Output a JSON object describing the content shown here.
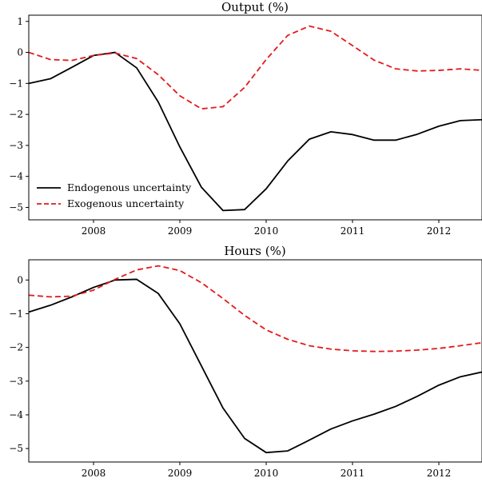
{
  "chart_data": [
    {
      "type": "line",
      "title": "Output (%)",
      "xlabel": "",
      "ylabel": "",
      "xlim": [
        2007.25,
        2012.5
      ],
      "ylim": [
        -5.4,
        1.2
      ],
      "xticks": [
        2008,
        2009,
        2010,
        2011,
        2012
      ],
      "xtick_labels": [
        "2008",
        "2009",
        "2010",
        "2011",
        "2012"
      ],
      "yticks": [
        1,
        0,
        -1,
        -2,
        -3,
        -4,
        -5
      ],
      "ytick_labels": [
        "1",
        "0",
        "−1",
        "−2",
        "−3",
        "−4",
        "−5"
      ],
      "grid": false,
      "legend": "lower-left",
      "series": [
        {
          "name": "Endogenous uncertainty",
          "color": "#000000",
          "dash": "solid",
          "x": [
            2007.25,
            2007.5,
            2007.75,
            2008.0,
            2008.25,
            2008.5,
            2008.75,
            2009.0,
            2009.25,
            2009.5,
            2009.75,
            2010.0,
            2010.25,
            2010.5,
            2010.75,
            2011.0,
            2011.25,
            2011.5,
            2011.75,
            2012.0,
            2012.25,
            2012.5
          ],
          "values": [
            -1.0,
            -0.85,
            -0.48,
            -0.1,
            0.0,
            -0.5,
            -1.6,
            -3.05,
            -4.35,
            -5.1,
            -5.07,
            -4.4,
            -3.5,
            -2.8,
            -2.56,
            -2.65,
            -2.83,
            -2.83,
            -2.64,
            -2.38,
            -2.2,
            -2.17
          ]
        },
        {
          "name": "Exogenous uncertainty",
          "color": "#e41a1c",
          "dash": "dashed",
          "x": [
            2007.25,
            2007.5,
            2007.75,
            2008.0,
            2008.25,
            2008.5,
            2008.75,
            2009.0,
            2009.25,
            2009.5,
            2009.75,
            2010.0,
            2010.25,
            2010.5,
            2010.75,
            2011.0,
            2011.25,
            2011.5,
            2011.75,
            2012.0,
            2012.25,
            2012.5
          ],
          "values": [
            0.0,
            -0.23,
            -0.26,
            -0.1,
            -0.02,
            -0.2,
            -0.72,
            -1.4,
            -1.82,
            -1.75,
            -1.13,
            -0.23,
            0.55,
            0.85,
            0.68,
            0.22,
            -0.25,
            -0.53,
            -0.6,
            -0.58,
            -0.53,
            -0.58
          ]
        }
      ]
    },
    {
      "type": "line",
      "title": "Hours (%)",
      "xlabel": "",
      "ylabel": "",
      "xlim": [
        2007.25,
        2012.5
      ],
      "ylim": [
        -5.4,
        0.6
      ],
      "xticks": [
        2008,
        2009,
        2010,
        2011,
        2012
      ],
      "xtick_labels": [
        "2008",
        "2009",
        "2010",
        "2011",
        "2012"
      ],
      "yticks": [
        0,
        -1,
        -2,
        -3,
        -4,
        -5
      ],
      "ytick_labels": [
        "0",
        "−1",
        "−2",
        "−3",
        "−4",
        "−5"
      ],
      "grid": false,
      "legend": "none",
      "series": [
        {
          "name": "Endogenous uncertainty",
          "color": "#000000",
          "dash": "solid",
          "x": [
            2007.25,
            2007.5,
            2007.75,
            2008.0,
            2008.25,
            2008.5,
            2008.75,
            2009.0,
            2009.25,
            2009.5,
            2009.75,
            2010.0,
            2010.25,
            2010.5,
            2010.75,
            2011.0,
            2011.25,
            2011.5,
            2011.75,
            2012.0,
            2012.25,
            2012.5
          ],
          "values": [
            -0.95,
            -0.75,
            -0.5,
            -0.22,
            0.0,
            0.02,
            -0.4,
            -1.3,
            -2.55,
            -3.8,
            -4.7,
            -5.12,
            -5.07,
            -4.75,
            -4.42,
            -4.18,
            -3.98,
            -3.75,
            -3.45,
            -3.12,
            -2.87,
            -2.73
          ]
        },
        {
          "name": "Exogenous uncertainty",
          "color": "#e41a1c",
          "dash": "dashed",
          "x": [
            2007.25,
            2007.5,
            2007.75,
            2008.0,
            2008.25,
            2008.5,
            2008.75,
            2009.0,
            2009.25,
            2009.5,
            2009.75,
            2010.0,
            2010.25,
            2010.5,
            2010.75,
            2011.0,
            2011.25,
            2011.5,
            2011.75,
            2012.0,
            2012.25,
            2012.5
          ],
          "values": [
            -0.45,
            -0.5,
            -0.48,
            -0.3,
            0.02,
            0.3,
            0.42,
            0.28,
            -0.08,
            -0.55,
            -1.05,
            -1.48,
            -1.76,
            -1.95,
            -2.05,
            -2.1,
            -2.12,
            -2.11,
            -2.08,
            -2.03,
            -1.95,
            -1.86
          ]
        }
      ]
    }
  ]
}
